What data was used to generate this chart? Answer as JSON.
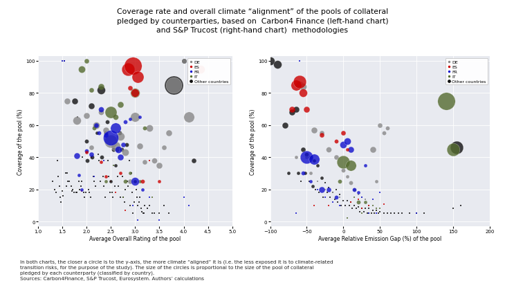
{
  "title": "Coverage rate and overall climate “alignment” of the pools of collateral\npledged by counterparties, based on  Carbon4 Finance (left-hand chart)\nand S&P Trucost (right-hand chart)  methodologies",
  "footnote": "In both charts, the closer a circle is to the y-axis, the more climate “aligned” it is (i.e. the less exposed it is to climate-related\ntransition risks, for the purpose of the study). The size of the circles is proportional to the size of the pool of collateral\npledged by each counterparty (classified by country).\nSources: Carbon4Finance, S&P Trucost, Eurosystem. Authors’ calculations",
  "colors": {
    "DE": "#888888",
    "ES": "#cc0000",
    "FR": "#1111cc",
    "IT": "#556b2f",
    "Other": "#111111"
  },
  "left_xlabel": "Average Overall Rating of the pool",
  "left_ylabel": "Coverage of the pool (%)",
  "right_xlabel": "Average Relative Emission Gap (%) of the pool",
  "right_ylabel": "Coverage of the pool (%)",
  "left_xlim": [
    1.0,
    5.0
  ],
  "left_ylim": [
    -3,
    103
  ],
  "right_xlim": [
    -100,
    200
  ],
  "right_ylim": [
    -3,
    103
  ],
  "background_color": "#e8eaf0",
  "label_map": {
    "DE": "DE",
    "ES": "ES",
    "FR": "FR",
    "IT": "IT",
    "Other": "Other countries"
  },
  "country_order": [
    "DE",
    "ES",
    "FR",
    "IT",
    "Other"
  ],
  "left_xticks": [
    1.0,
    1.5,
    2.0,
    2.5,
    3.0,
    3.5,
    4.0,
    4.5,
    5.0
  ],
  "left_yticks": [
    0,
    20,
    40,
    60,
    80,
    100
  ],
  "right_xticks": [
    -100,
    -50,
    0,
    50,
    100,
    150,
    200
  ],
  "right_yticks": [
    0,
    20,
    40,
    60,
    80,
    100
  ],
  "left_data": {
    "Other": {
      "x": [
        1.3,
        1.35,
        1.38,
        1.4,
        1.42,
        1.44,
        1.46,
        1.48,
        1.5,
        1.52,
        1.55,
        1.57,
        1.58,
        1.6,
        1.62,
        1.65,
        1.68,
        1.7,
        1.72,
        1.74,
        1.76,
        1.78,
        1.8,
        1.82,
        1.84,
        1.86,
        1.88,
        1.9,
        1.92,
        1.94,
        1.96,
        1.98,
        2.0,
        2.02,
        2.04,
        2.06,
        2.08,
        2.1,
        2.12,
        2.14,
        2.16,
        2.18,
        2.2,
        2.22,
        2.24,
        2.26,
        2.28,
        2.3,
        2.32,
        2.34,
        2.36,
        2.38,
        2.4,
        2.42,
        2.44,
        2.46,
        2.48,
        2.5,
        2.52,
        2.54,
        2.56,
        2.58,
        2.6,
        2.62,
        2.64,
        2.66,
        2.68,
        2.7,
        2.72,
        2.74,
        2.76,
        2.78,
        2.8,
        2.82,
        2.84,
        2.86,
        2.88,
        2.9,
        2.92,
        2.94,
        2.96,
        2.98,
        3.0,
        3.02,
        3.04,
        3.06,
        3.08,
        3.1,
        3.12,
        3.14,
        3.16,
        3.18,
        3.2,
        3.25,
        3.3,
        3.35,
        3.4,
        3.5,
        3.6,
        3.7,
        3.8,
        4.0,
        4.2
      ],
      "y": [
        25,
        20,
        18,
        38,
        28,
        22,
        15,
        12,
        19,
        16,
        100,
        30,
        22,
        30,
        25,
        25,
        22,
        19,
        20,
        18,
        75,
        18,
        18,
        65,
        25,
        20,
        22,
        25,
        40,
        18,
        15,
        18,
        50,
        38,
        20,
        18,
        15,
        72,
        40,
        28,
        25,
        22,
        60,
        55,
        42,
        38,
        25,
        82,
        40,
        28,
        22,
        15,
        55,
        62,
        38,
        28,
        18,
        25,
        18,
        15,
        45,
        22,
        35,
        45,
        28,
        22,
        55,
        15,
        45,
        28,
        15,
        12,
        20,
        48,
        25,
        22,
        38,
        10,
        30,
        18,
        5,
        12,
        25,
        20,
        15,
        10,
        12,
        15,
        8,
        6,
        5,
        5,
        10,
        8,
        10,
        5,
        5,
        5,
        10,
        5,
        85,
        100,
        38
      ],
      "s": [
        3,
        3,
        3,
        3,
        3,
        3,
        3,
        3,
        3,
        3,
        3,
        3,
        3,
        3,
        3,
        3,
        3,
        3,
        3,
        3,
        8,
        3,
        3,
        3,
        3,
        3,
        3,
        3,
        3,
        3,
        3,
        3,
        5,
        5,
        3,
        3,
        3,
        8,
        5,
        3,
        3,
        3,
        4,
        4,
        3,
        3,
        3,
        12,
        5,
        3,
        3,
        3,
        5,
        5,
        3,
        3,
        3,
        4,
        3,
        3,
        5,
        3,
        4,
        5,
        3,
        3,
        5,
        3,
        5,
        3,
        3,
        3,
        3,
        5,
        3,
        3,
        3,
        3,
        3,
        3,
        3,
        3,
        4,
        3,
        3,
        3,
        3,
        3,
        3,
        3,
        3,
        3,
        3,
        3,
        3,
        3,
        3,
        3,
        3,
        3,
        30,
        6,
        6
      ]
    },
    "DE": {
      "x": [
        1.5,
        1.6,
        1.8,
        2.0,
        2.1,
        2.2,
        2.3,
        2.4,
        2.5,
        2.6,
        2.7,
        2.8,
        2.9,
        3.0,
        3.1,
        3.2,
        3.3,
        3.4,
        3.5,
        3.6,
        3.7,
        3.8,
        4.0,
        4.1,
        4.2
      ],
      "y": [
        100,
        75,
        63,
        66,
        46,
        60,
        68,
        57,
        50,
        47,
        53,
        43,
        25,
        65,
        47,
        37,
        58,
        38,
        35,
        46,
        55,
        85,
        100,
        65,
        95
      ],
      "s": [
        3,
        8,
        12,
        8,
        6,
        10,
        7,
        8,
        20,
        14,
        12,
        10,
        6,
        14,
        8,
        6,
        10,
        7,
        8,
        6,
        8,
        25,
        6,
        16,
        8
      ]
    },
    "ES": {
      "x": [
        1.9,
        2.0,
        2.1,
        2.3,
        2.4,
        2.5,
        2.6,
        2.7,
        2.8,
        2.85,
        2.9,
        2.95,
        3.0,
        3.05,
        3.15,
        3.3,
        3.5,
        4.35
      ],
      "y": [
        19,
        43,
        40,
        37,
        28,
        25,
        18,
        30,
        7,
        95,
        83,
        97,
        80,
        90,
        25,
        38,
        25,
        95
      ],
      "s": [
        3,
        4,
        3,
        4,
        4,
        3,
        3,
        4,
        3,
        20,
        6,
        28,
        12,
        18,
        5,
        3,
        4,
        12
      ]
    },
    "FR": {
      "x": [
        1.5,
        1.55,
        1.8,
        1.85,
        1.9,
        2.0,
        2.1,
        2.15,
        2.2,
        2.25,
        2.3,
        2.35,
        2.4,
        2.5,
        2.6,
        2.65,
        2.7,
        2.75,
        2.8,
        2.9,
        2.95,
        3.0,
        3.05,
        3.1,
        3.15,
        3.3,
        3.5,
        4.0,
        4.1
      ],
      "y": [
        100,
        100,
        41,
        29,
        20,
        44,
        42,
        28,
        60,
        55,
        70,
        38,
        54,
        52,
        58,
        45,
        40,
        48,
        62,
        64,
        10,
        25,
        1,
        65,
        20,
        15,
        1,
        15,
        10
      ],
      "s": [
        3,
        3,
        8,
        4,
        4,
        5,
        6,
        3,
        6,
        5,
        7,
        3,
        6,
        24,
        16,
        10,
        8,
        6,
        5,
        4,
        3,
        12,
        3,
        4,
        4,
        3,
        3,
        3,
        3
      ]
    },
    "IT": {
      "x": [
        1.9,
        2.0,
        2.1,
        2.15,
        2.3,
        2.4,
        2.5,
        2.55,
        2.6,
        2.7,
        2.75,
        2.8,
        2.9,
        3.0,
        3.1,
        3.2,
        3.35
      ],
      "y": [
        95,
        100,
        82,
        58,
        84,
        25,
        68,
        35,
        65,
        73,
        15,
        25,
        30,
        80,
        25,
        58,
        15
      ],
      "s": [
        10,
        6,
        6,
        5,
        8,
        4,
        18,
        3,
        7,
        8,
        3,
        5,
        4,
        14,
        4,
        5,
        3
      ]
    }
  },
  "right_data": {
    "Other": {
      "x": [
        -100,
        -90,
        -80,
        -75,
        -70,
        -65,
        -62,
        -58,
        -55,
        -52,
        -50,
        -47,
        -45,
        -42,
        -40,
        -38,
        -35,
        -33,
        -30,
        -28,
        -25,
        -22,
        -20,
        -18,
        -15,
        -12,
        -10,
        -8,
        -5,
        -3,
        0,
        2,
        5,
        8,
        10,
        12,
        15,
        18,
        20,
        22,
        25,
        28,
        30,
        33,
        35,
        38,
        40,
        42,
        45,
        48,
        50,
        55,
        60,
        65,
        70,
        75,
        80,
        90,
        100,
        110,
        150,
        155,
        160
      ],
      "y": [
        100,
        98,
        60,
        30,
        68,
        70,
        30,
        25,
        45,
        30,
        42,
        25,
        40,
        22,
        38,
        20,
        35,
        18,
        27,
        15,
        24,
        18,
        21,
        15,
        18,
        14,
        20,
        12,
        17,
        10,
        13,
        10,
        13,
        10,
        12,
        8,
        10,
        8,
        9,
        6,
        8,
        6,
        8,
        5,
        8,
        5,
        7,
        5,
        7,
        5,
        6,
        5,
        5,
        5,
        5,
        5,
        5,
        5,
        5,
        5,
        8,
        46,
        10
      ],
      "s": [
        12,
        12,
        8,
        4,
        8,
        8,
        4,
        3,
        6,
        4,
        5,
        3,
        5,
        4,
        4,
        3,
        4,
        3,
        4,
        3,
        3,
        3,
        3,
        3,
        3,
        3,
        3,
        3,
        3,
        3,
        3,
        3,
        3,
        3,
        3,
        3,
        3,
        3,
        3,
        3,
        3,
        3,
        3,
        3,
        3,
        3,
        3,
        3,
        3,
        3,
        3,
        3,
        3,
        3,
        3,
        3,
        3,
        3,
        3,
        3,
        3,
        20,
        3
      ]
    },
    "DE": {
      "x": [
        -65,
        -60,
        -55,
        -50,
        -45,
        -40,
        -35,
        -30,
        -25,
        -20,
        -15,
        -10,
        -5,
        0,
        5,
        10,
        15,
        20,
        25,
        30,
        35,
        40,
        45,
        50,
        55,
        60
      ],
      "y": [
        40,
        85,
        84,
        40,
        30,
        57,
        25,
        55,
        20,
        45,
        18,
        40,
        15,
        32,
        28,
        24,
        20,
        17,
        15,
        14,
        10,
        45,
        25,
        60,
        55,
        58
      ],
      "s": [
        4,
        12,
        10,
        4,
        4,
        8,
        3,
        6,
        3,
        7,
        3,
        6,
        3,
        5,
        4,
        5,
        4,
        3,
        3,
        3,
        3,
        8,
        4,
        6,
        5,
        5
      ]
    },
    "ES": {
      "x": [
        -70,
        -65,
        -60,
        -55,
        -50,
        -40,
        -30,
        -20,
        -10,
        0,
        5,
        10,
        20,
        25,
        35,
        55
      ],
      "y": [
        70,
        85,
        87,
        80,
        70,
        10,
        54,
        10,
        50,
        55,
        45,
        12,
        14,
        8,
        10,
        11
      ],
      "s": [
        8,
        16,
        20,
        12,
        8,
        3,
        6,
        3,
        5,
        6,
        4,
        3,
        3,
        3,
        3,
        3
      ]
    },
    "FR": {
      "x": [
        -65,
        -60,
        -55,
        -50,
        -45,
        -40,
        -35,
        -30,
        -25,
        -20,
        -15,
        -10,
        -5,
        0,
        5,
        10,
        15,
        20,
        25,
        30,
        35,
        40,
        45,
        50,
        100
      ],
      "y": [
        5,
        100,
        30,
        40,
        25,
        39,
        20,
        20,
        15,
        20,
        12,
        15,
        10,
        48,
        50,
        45,
        20,
        18,
        15,
        35,
        5,
        14,
        5,
        18,
        5
      ],
      "s": [
        3,
        3,
        5,
        20,
        4,
        16,
        3,
        8,
        3,
        6,
        3,
        5,
        3,
        10,
        10,
        8,
        5,
        4,
        3,
        4,
        3,
        3,
        3,
        3,
        3
      ]
    },
    "IT": {
      "x": [
        -5,
        0,
        5,
        10,
        15,
        20,
        25,
        30,
        35,
        40,
        45,
        50,
        140,
        150
      ],
      "y": [
        25,
        37,
        2,
        35,
        15,
        12,
        5,
        12,
        5,
        10,
        8,
        8,
        75,
        45
      ],
      "s": [
        5,
        20,
        3,
        16,
        3,
        5,
        3,
        4,
        3,
        3,
        3,
        3,
        28,
        20
      ]
    }
  }
}
